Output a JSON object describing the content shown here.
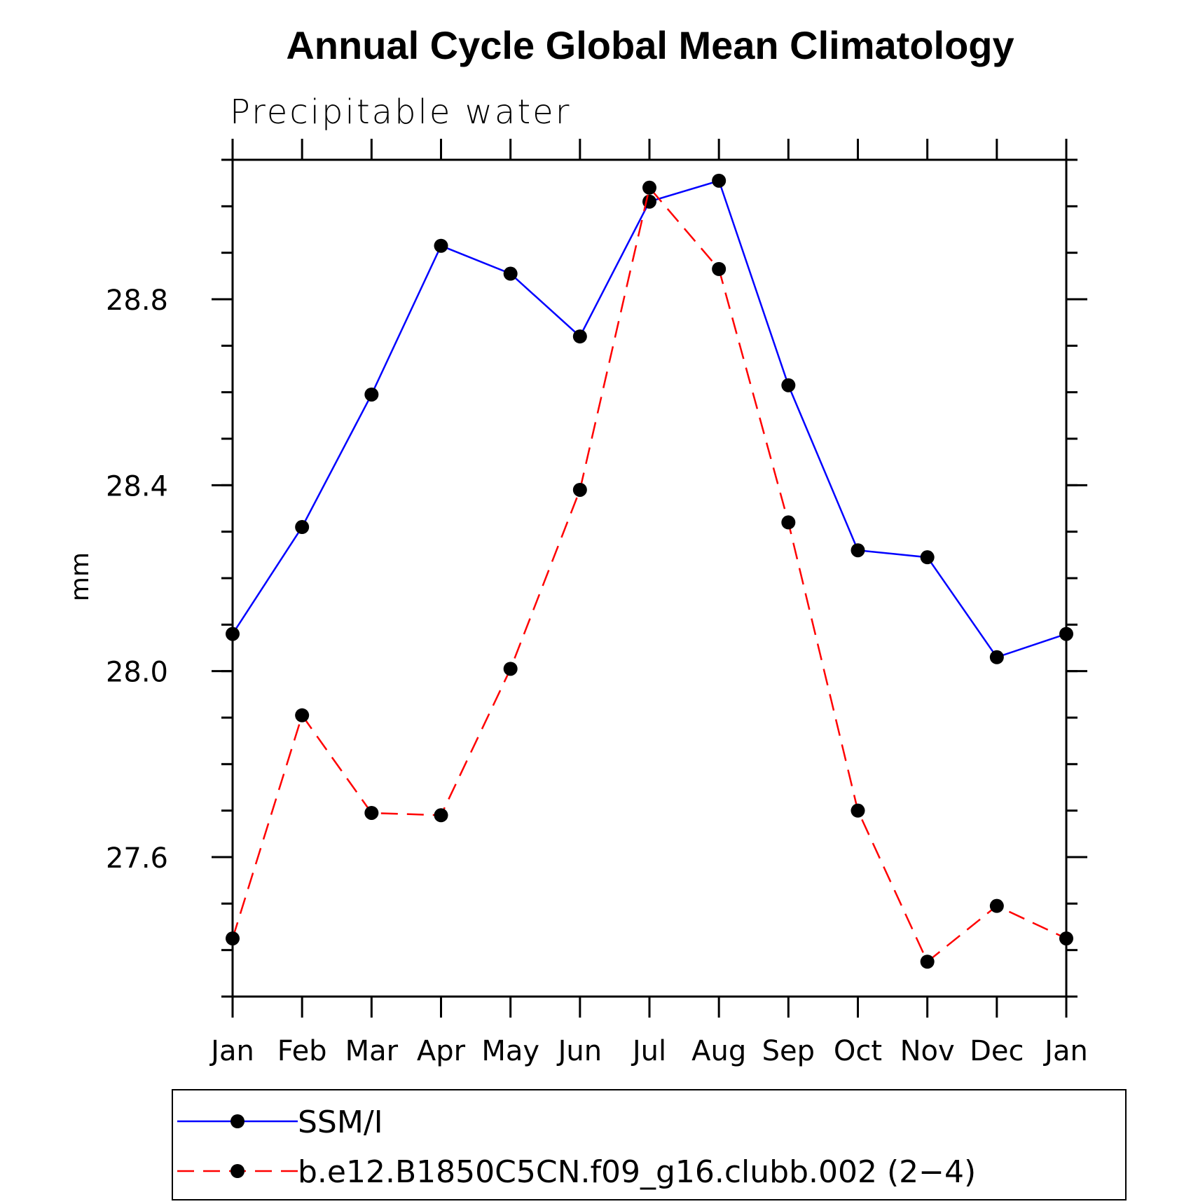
{
  "chart_data": {
    "type": "line",
    "title": "Annual Cycle Global Mean Climatology",
    "subtitle": "Precipitable water",
    "xlabel": "",
    "ylabel": "mm",
    "categories": [
      "Jan",
      "Feb",
      "Mar",
      "Apr",
      "May",
      "Jun",
      "Jul",
      "Aug",
      "Sep",
      "Oct",
      "Nov",
      "Dec",
      "Jan"
    ],
    "ylim": [
      27.3,
      29.1
    ],
    "yticks_major": [
      27.6,
      28.0,
      28.4,
      28.8
    ],
    "ytick_labels": [
      "27.6",
      "28.0",
      "28.4",
      "28.8"
    ],
    "yticks_minor_step": 0.1,
    "grid": false,
    "series": [
      {
        "name": "SSM/I",
        "color": "#0000ff",
        "dash": "solid",
        "marker": "filled-circle",
        "values": [
          28.08,
          28.31,
          28.595,
          28.915,
          28.855,
          28.72,
          29.01,
          29.055,
          28.615,
          28.26,
          28.245,
          28.03,
          28.08
        ]
      },
      {
        "name": "b.e12.B1850C5CN.f09_g16.clubb.002 (2−4)",
        "color": "#ff0000",
        "dash": "dashed",
        "marker": "filled-circle",
        "values": [
          27.425,
          27.905,
          27.695,
          27.69,
          28.005,
          28.39,
          29.04,
          28.865,
          28.32,
          27.7,
          27.375,
          27.495,
          27.425
        ]
      }
    ],
    "legend": {
      "placement": "bottom",
      "entries": [
        "SSM/I",
        "b.e12.B1850C5CN.f09_g16.clubb.002 (2−4)"
      ]
    }
  }
}
